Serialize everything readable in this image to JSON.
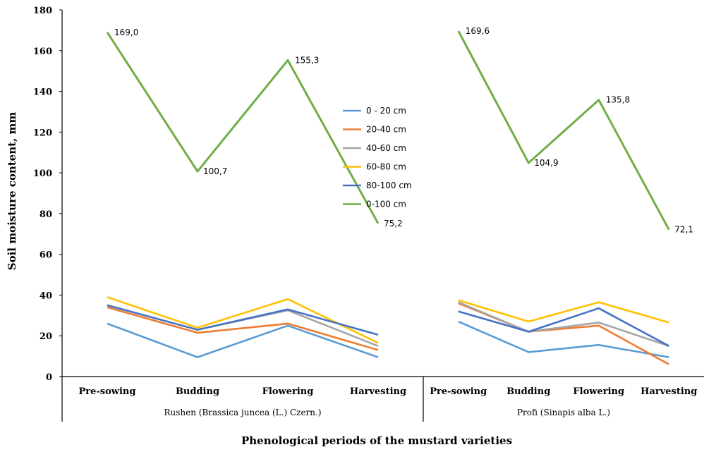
{
  "chart_data": {
    "type": "line",
    "xlabel": "Phenological periods of the mustard varieties",
    "ylabel": "Soil moisture content, mm",
    "ylim": [
      0,
      180
    ],
    "yticks": [
      "0",
      "20",
      "40",
      "60",
      "80",
      "100",
      "120",
      "140",
      "160",
      "180"
    ],
    "grid": false,
    "legend_position": "center",
    "groups": [
      {
        "name": "Rushen (Brassica juncea (L.) Czern.)",
        "categories": [
          "Pre-sowing",
          "Budding",
          "Flowering",
          "Harvesting"
        ],
        "series": [
          {
            "name": "0 - 20 cm",
            "color": "#5b9bd5",
            "values": [
              26,
              9.5,
              25,
              9.5
            ]
          },
          {
            "name": "20-40 cm",
            "color": "#ed7d31",
            "values": [
              34,
              21.5,
              26,
              13
            ]
          },
          {
            "name": "40-60 cm",
            "color": "#a5a5a5",
            "values": [
              35,
              23,
              32.5,
              15
            ]
          },
          {
            "name": "60-80 cm",
            "color": "#ffc000",
            "values": [
              39,
              24,
              38,
              16.5
            ]
          },
          {
            "name": "80-100 cm",
            "color": "#4472c4",
            "values": [
              35,
              23,
              33,
              20.5
            ]
          },
          {
            "name": "0-100 cm",
            "color": "#70ad47",
            "values": [
              169.0,
              100.7,
              155.3,
              75.2
            ],
            "labels": [
              "169,0",
              "100,7",
              "155,3",
              "75,2"
            ]
          }
        ]
      },
      {
        "name": "Profi (Sinapis alba L.)",
        "categories": [
          "Pre-sowing",
          "Budding",
          "Flowering",
          "Harvesting"
        ],
        "series": [
          {
            "name": "0 - 20 cm",
            "color": "#5b9bd5",
            "values": [
              27,
              12,
              15.5,
              9.5
            ]
          },
          {
            "name": "20-40 cm",
            "color": "#ed7d31",
            "values": [
              36,
              22,
              25,
              6
            ]
          },
          {
            "name": "40-60 cm",
            "color": "#a5a5a5",
            "values": [
              36.5,
              22,
              26.5,
              15
            ]
          },
          {
            "name": "60-80 cm",
            "color": "#ffc000",
            "values": [
              37.5,
              27,
              36.5,
              26.5
            ]
          },
          {
            "name": "80-100 cm",
            "color": "#4472c4",
            "values": [
              32,
              22,
              33.5,
              15
            ]
          },
          {
            "name": "0-100 cm",
            "color": "#70ad47",
            "values": [
              169.6,
              104.9,
              135.8,
              72.1
            ],
            "labels": [
              "169,6",
              "104,9",
              "135,8",
              "72,1"
            ]
          }
        ]
      }
    ]
  }
}
